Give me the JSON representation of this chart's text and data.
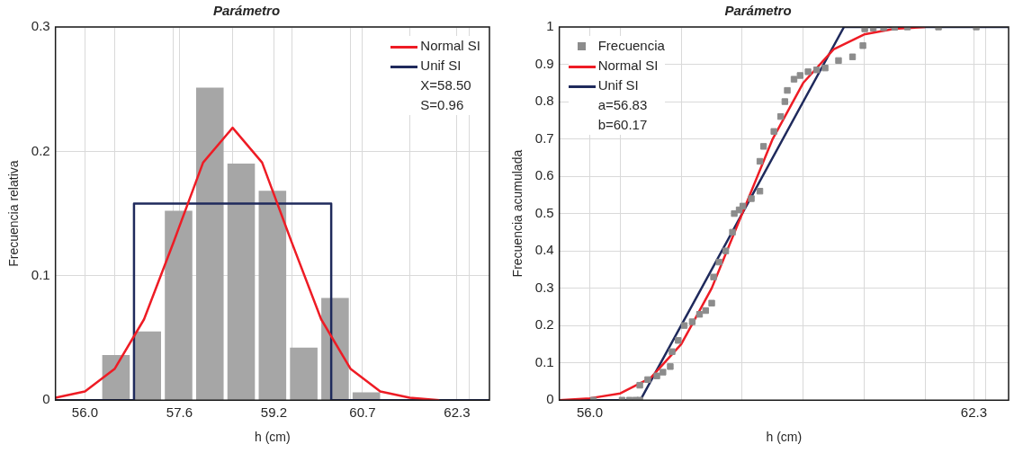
{
  "chart_data": [
    {
      "type": "histogram",
      "title": "Parámetro",
      "xlabel": "h (cm)",
      "ylabel": "Frecuencia relativa",
      "bins": [
        56.26,
        56.79,
        57.32,
        57.85,
        58.38,
        58.91,
        59.44,
        59.97,
        60.5,
        61.03
      ],
      "values": [
        0.036,
        0.055,
        0.152,
        0.251,
        0.19,
        0.168,
        0.042,
        0.082,
        0.006
      ],
      "color": "#a6a6a6",
      "series": [
        {
          "name": "Normal SI",
          "type": "line",
          "color": "#ee1c25",
          "x": [
            55.5,
            56.0,
            56.5,
            57.0,
            57.5,
            58.0,
            58.5,
            59.0,
            59.5,
            60.0,
            60.5,
            61.0,
            61.5,
            62.0
          ],
          "values": [
            0.002,
            0.007,
            0.025,
            0.065,
            0.127,
            0.191,
            0.219,
            0.191,
            0.127,
            0.065,
            0.025,
            0.007,
            0.002,
            0
          ]
        },
        {
          "name": "Unif SI",
          "type": "line",
          "color": "#1f2a5c",
          "x": [
            55.5,
            56.83,
            56.83,
            60.17,
            60.17,
            62.85
          ],
          "values": [
            0,
            0,
            0.158,
            0.158,
            0,
            0
          ]
        }
      ],
      "xlim": [
        55.5,
        62.85
      ],
      "xticks": [
        {
          "value": 56.0,
          "label": "56.0"
        },
        {
          "value": 56.5,
          "label": null
        },
        {
          "value": 57.5,
          "label": null
        },
        {
          "value": 57.6,
          "label": "57.6"
        },
        {
          "value": 58.5,
          "label": null
        },
        {
          "value": 59.2,
          "label": "59.2"
        },
        {
          "value": 59.5,
          "label": null
        },
        {
          "value": 60.5,
          "label": null
        },
        {
          "value": 60.7,
          "label": "60.7"
        },
        {
          "value": 61.5,
          "label": null
        },
        {
          "value": 62.3,
          "label": "62.3"
        },
        {
          "value": 62.5,
          "label": null
        }
      ],
      "ylim": [
        0,
        0.3
      ],
      "yticks": [
        0,
        0.1,
        0.2,
        0.3
      ],
      "grid": true,
      "legend": "top right",
      "annotations": [
        "X=58.50",
        "S=0.96"
      ]
    },
    {
      "type": "scatter",
      "title": "Parámetro",
      "xlabel": "h (cm)",
      "ylabel": "Frecuencia acumulada",
      "series": [
        {
          "name": "Frecuencia",
          "type": "scatter",
          "color": "#8c8c8c",
          "marker": "square",
          "x": [
            56.06,
            56.53,
            56.65,
            56.75,
            56.82,
            56.82,
            56.95,
            57.1,
            57.2,
            57.32,
            57.35,
            57.45,
            57.55,
            57.68,
            57.8,
            57.9,
            58.0,
            58.03,
            58.12,
            58.23,
            58.34,
            58.37,
            58.45,
            58.51,
            58.65,
            58.79,
            58.79,
            58.85,
            59.02,
            59.13,
            59.2,
            59.24,
            59.35,
            59.45,
            59.58,
            59.72,
            59.86,
            60.08,
            60.31,
            60.48,
            60.51,
            60.65,
            60.82,
            61.0,
            61.21,
            61.72,
            62.34
          ],
          "values": [
            0,
            0,
            0,
            0,
            0,
            0.04,
            0.055,
            0.065,
            0.075,
            0.09,
            0.13,
            0.16,
            0.2,
            0.21,
            0.23,
            0.24,
            0.26,
            0.33,
            0.37,
            0.4,
            0.45,
            0.5,
            0.51,
            0.52,
            0.54,
            0.56,
            0.64,
            0.68,
            0.72,
            0.76,
            0.8,
            0.83,
            0.86,
            0.87,
            0.88,
            0.885,
            0.89,
            0.91,
            0.92,
            0.95,
            0.995,
            0.997,
            0.998,
            0.999,
            1,
            1,
            1
          ]
        },
        {
          "name": "Normal SI",
          "type": "line",
          "color": "#ee1c25",
          "x": [
            55.5,
            56.0,
            56.5,
            57.0,
            57.5,
            58.0,
            58.5,
            59.0,
            59.5,
            60.0,
            60.5,
            61.0,
            61.5
          ],
          "values": [
            0,
            0.005,
            0.018,
            0.06,
            0.15,
            0.3,
            0.5,
            0.7,
            0.85,
            0.94,
            0.98,
            0.995,
            1
          ]
        },
        {
          "name": "Unif SI",
          "type": "line",
          "color": "#1f2a5c",
          "x": [
            55.5,
            56.83,
            60.17,
            62.87
          ],
          "values": [
            0,
            0,
            1,
            1
          ]
        }
      ],
      "xlim": [
        55.5,
        62.87
      ],
      "xticks": [
        {
          "value": 56.0,
          "label": "56.0"
        },
        {
          "value": 56.5,
          "label": null
        },
        {
          "value": 57.5,
          "label": null
        },
        {
          "value": 58.5,
          "label": null
        },
        {
          "value": 59.5,
          "label": null
        },
        {
          "value": 60.5,
          "label": null
        },
        {
          "value": 61.5,
          "label": null
        },
        {
          "value": 62.3,
          "label": "62.3"
        },
        {
          "value": 62.5,
          "label": null
        }
      ],
      "ylim": [
        0,
        1
      ],
      "yticks": [
        0,
        0.1,
        0.2,
        0.3,
        0.4,
        0.5,
        0.6,
        0.7,
        0.8,
        0.9,
        1
      ],
      "grid": true,
      "legend": "top left",
      "annotations": [
        "a=56.83",
        "b=60.17"
      ]
    }
  ]
}
